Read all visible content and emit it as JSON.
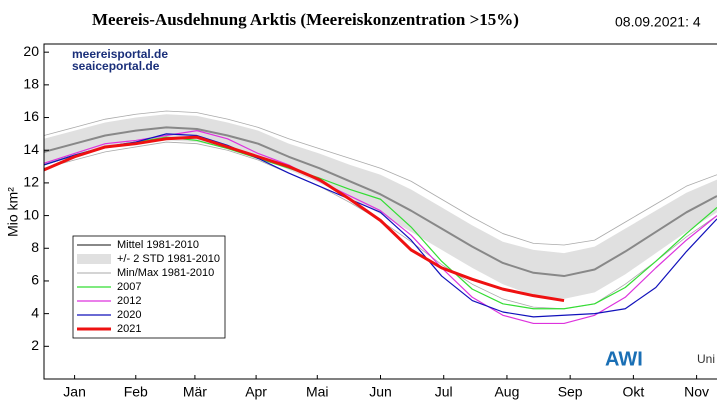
{
  "chart_data": {
    "type": "line",
    "title": "Meereis-Ausdehnung Arktis (Meereiskonzentration >15%)",
    "date_label": "08.09.2021:  4",
    "ylabel": "Mio km²",
    "watermark": [
      "meereisportal.de",
      "seaiceportal.de"
    ],
    "logos": [
      "AWI",
      "Uni"
    ],
    "xlim": [
      0,
      330
    ],
    "ylim": [
      0,
      20.5
    ],
    "yticks": [
      2,
      4,
      6,
      8,
      10,
      12,
      14,
      16,
      18,
      20
    ],
    "xticks": [
      {
        "value": 15,
        "label": "Jan"
      },
      {
        "value": 45,
        "label": "Feb"
      },
      {
        "value": 74,
        "label": "Mär"
      },
      {
        "value": 104,
        "label": "Apr"
      },
      {
        "value": 134,
        "label": "Mai"
      },
      {
        "value": 165,
        "label": "Jun"
      },
      {
        "value": 196,
        "label": "Jul"
      },
      {
        "value": 227,
        "label": "Aug"
      },
      {
        "value": 258,
        "label": "Sep"
      },
      {
        "value": 289,
        "label": "Okt"
      },
      {
        "value": 320,
        "label": "Nov"
      }
    ],
    "x": [
      0,
      15,
      30,
      45,
      60,
      75,
      90,
      105,
      120,
      135,
      150,
      165,
      180,
      195,
      210,
      225,
      240,
      255,
      270,
      285,
      300,
      315,
      330
    ],
    "bands": [
      {
        "name": "+/- 2 STD 1981-2010",
        "color": "#e0e0e0",
        "lower": [
          13.1,
          13.6,
          14.1,
          14.4,
          14.6,
          14.5,
          14.1,
          13.6,
          12.8,
          12.0,
          11.1,
          10.1,
          9.0,
          7.9,
          6.8,
          5.8,
          5.1,
          4.9,
          5.3,
          6.4,
          7.7,
          9.0,
          10.2
        ],
        "upper": [
          14.7,
          15.2,
          15.7,
          16.0,
          16.2,
          16.1,
          15.7,
          15.2,
          14.4,
          13.8,
          13.1,
          12.5,
          11.6,
          10.5,
          9.4,
          8.4,
          7.9,
          7.7,
          8.1,
          9.2,
          10.3,
          11.4,
          12.2
        ]
      },
      {
        "name": "Min/Max 1981-2010",
        "color": "#aaaaaa",
        "lower": [
          12.9,
          13.4,
          13.9,
          14.2,
          14.5,
          14.4,
          14.0,
          13.4,
          12.6,
          11.8,
          10.8,
          9.7,
          8.4,
          7.0,
          5.8,
          4.9,
          4.4,
          4.3,
          4.6,
          5.8,
          7.2,
          8.7,
          10.0
        ],
        "upper": [
          14.9,
          15.4,
          15.9,
          16.2,
          16.4,
          16.3,
          15.9,
          15.4,
          14.7,
          14.1,
          13.5,
          12.9,
          12.1,
          11.0,
          9.9,
          8.9,
          8.3,
          8.2,
          8.5,
          9.6,
          10.7,
          11.8,
          12.5
        ]
      }
    ],
    "series": [
      {
        "name": "Mittel 1981-2010",
        "color": "#888888",
        "width": 2,
        "values": [
          13.9,
          14.4,
          14.9,
          15.2,
          15.4,
          15.3,
          14.9,
          14.4,
          13.6,
          12.9,
          12.1,
          11.3,
          10.3,
          9.2,
          8.1,
          7.1,
          6.5,
          6.3,
          6.7,
          7.8,
          9.0,
          10.2,
          11.2
        ]
      },
      {
        "name": "2007",
        "color": "#33dd33",
        "width": 1.2,
        "values": [
          13.1,
          13.7,
          14.2,
          14.5,
          14.8,
          14.6,
          14.1,
          13.5,
          12.9,
          12.3,
          11.6,
          11.0,
          9.3,
          7.2,
          5.5,
          4.6,
          4.3,
          4.3,
          4.6,
          5.6,
          7.2,
          8.9,
          10.5
        ]
      },
      {
        "name": "2012",
        "color": "#dd33dd",
        "width": 1.2,
        "values": [
          13.2,
          13.8,
          14.4,
          14.6,
          14.9,
          15.2,
          14.7,
          13.8,
          13.1,
          12.1,
          11.2,
          10.3,
          8.8,
          6.8,
          5.0,
          3.9,
          3.4,
          3.4,
          3.9,
          5.0,
          6.8,
          8.5,
          10.0
        ]
      },
      {
        "name": "2020",
        "color": "#1111bb",
        "width": 1.2,
        "values": [
          13.1,
          13.7,
          14.2,
          14.5,
          15.0,
          14.9,
          14.3,
          13.5,
          12.6,
          11.8,
          11.0,
          10.2,
          8.5,
          6.3,
          4.8,
          4.1,
          3.8,
          3.9,
          4.0,
          4.3,
          5.6,
          7.8,
          9.8
        ]
      },
      {
        "name": "2021",
        "color": "#ee1111",
        "width": 3,
        "values": [
          12.8,
          13.6,
          14.2,
          14.4,
          14.7,
          14.8,
          14.2,
          13.6,
          13.0,
          12.2,
          11.0,
          9.7,
          7.9,
          6.8,
          6.1,
          5.5,
          5.1,
          4.8,
          null,
          null,
          null,
          null,
          null
        ]
      }
    ]
  }
}
